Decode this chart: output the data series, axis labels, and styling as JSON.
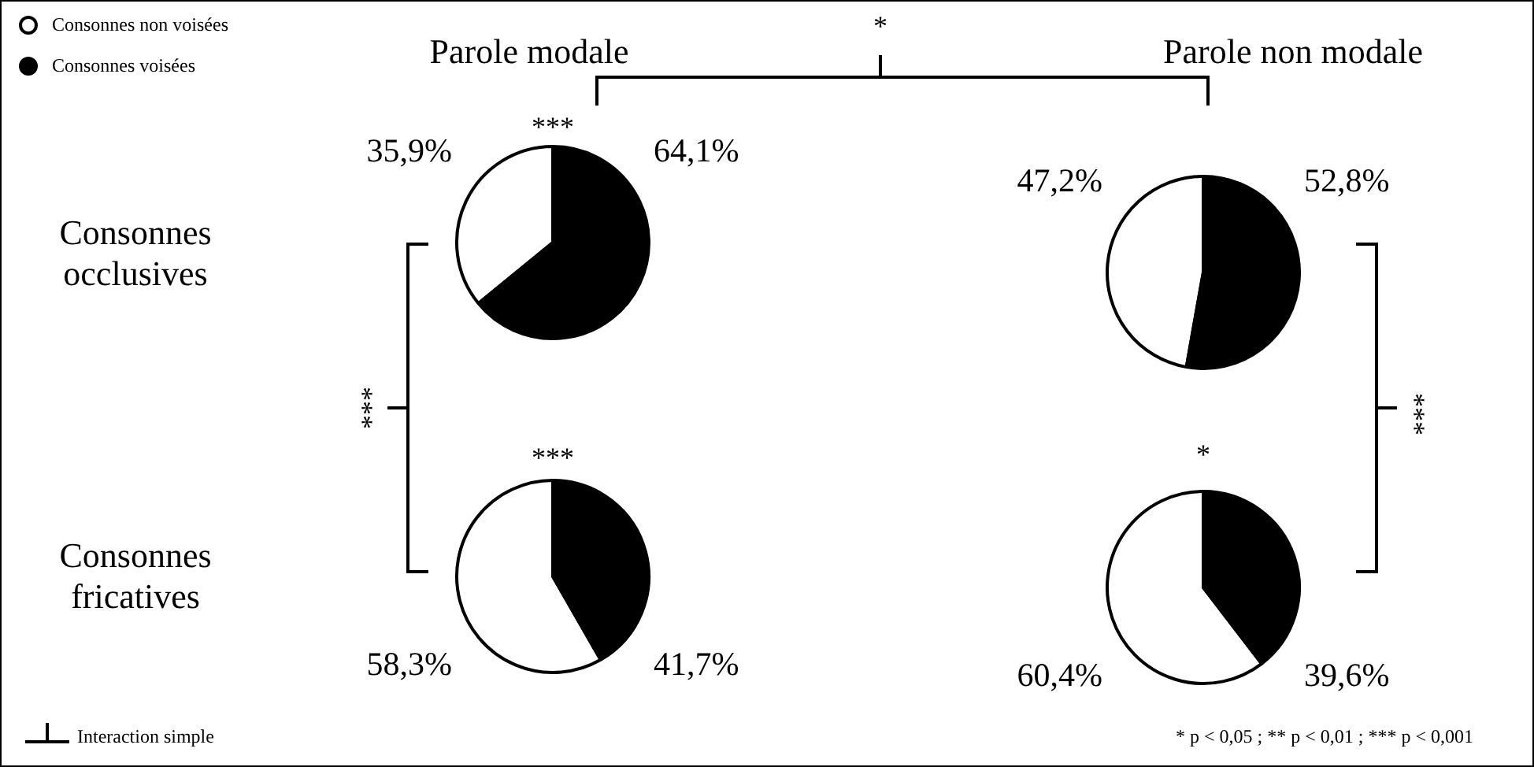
{
  "chart_data": [
    {
      "type": "pie",
      "title": "Parole modale",
      "ylabel": "Consonnes occlusives",
      "categories": [
        "Consonnes non voisées",
        "Consonnes voisées"
      ],
      "values": [
        35.9,
        64.1
      ],
      "colors": [
        "#ffffff",
        "#000000"
      ],
      "value_labels": [
        "35,9%",
        "64,1%"
      ],
      "legend": "top left",
      "annotations": [
        "***"
      ]
    },
    {
      "type": "pie",
      "title": "Parole non modale",
      "categories": [
        null,
        null
      ],
      "values": [
        47.2,
        52.8
      ],
      "colors": [
        "#ffffff",
        "#000000"
      ],
      "value_labels": [
        "47,2%",
        "52,8%"
      ]
    },
    {
      "type": "pie",
      "ylabel": "Consonnes fricatives",
      "categories": [
        null,
        null
      ],
      "values": [
        58.3,
        41.7
      ],
      "colors": [
        "#ffffff",
        "#000000"
      ],
      "value_labels": [
        "58,3%",
        "41,7%"
      ],
      "annotations": [
        "***"
      ]
    },
    {
      "type": "pie",
      "categories": [
        null,
        null
      ],
      "values": [
        60.4,
        39.6
      ],
      "colors": [
        "#ffffff",
        "#000000"
      ],
      "value_labels": [
        "60,4%",
        "39,6%"
      ],
      "annotations": [
        "*"
      ]
    },
    {
      "type": "other",
      "annotations": [
        "*",
        "***",
        "***",
        "Interaction simple",
        "* p < 0,05 ; ** p < 0,01 ; *** p < 0,001"
      ]
    }
  ]
}
